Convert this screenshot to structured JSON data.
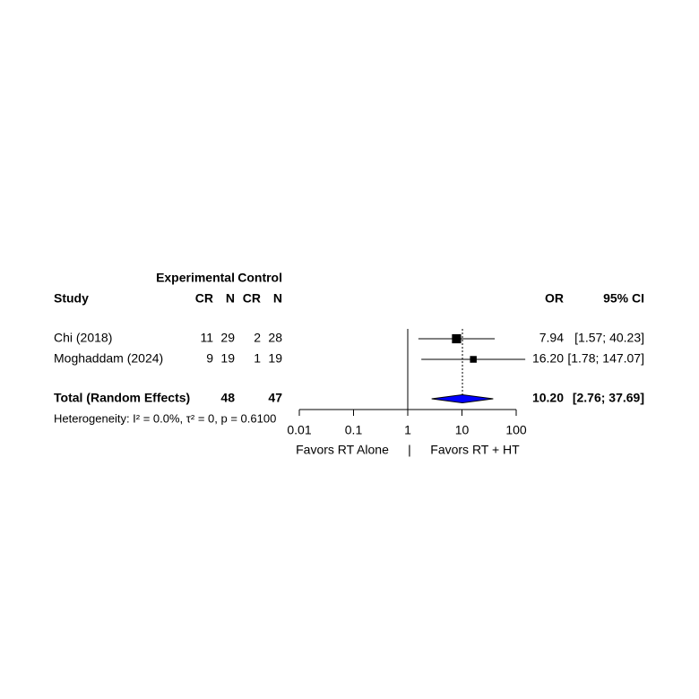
{
  "chart_data": {
    "type": "forest",
    "column_group_labels": [
      "Experimental",
      "Control"
    ],
    "column_headers": [
      "Study",
      "CR",
      "N",
      "CR",
      "N",
      "OR",
      "95% CI"
    ],
    "studies": [
      "Chi (2018)",
      "Moghaddam (2024)"
    ],
    "exp_events": [
      11,
      9
    ],
    "exp_total": [
      29,
      19
    ],
    "ctrl_events": [
      2,
      1
    ],
    "ctrl_total": [
      28,
      19
    ],
    "values": [
      7.94,
      16.2
    ],
    "value_labels": [
      "7.94",
      "16.20"
    ],
    "ci_lower": [
      1.57,
      1.78
    ],
    "ci_upper": [
      40.23,
      147.07
    ],
    "ci_labels": [
      "[1.57;  40.23]",
      "[1.78; 147.07]"
    ],
    "color": "#000000",
    "total": {
      "label": "Total (Random Effects)",
      "exp_total": 48,
      "ctrl_total": 47,
      "value": 10.2,
      "value_label": "10.20",
      "ci_lower": 2.76,
      "ci_upper": 37.69,
      "ci_label": "[2.76;  37.69]",
      "color": "#0000ff"
    },
    "heterogeneity": "Heterogeneity: I² = 0.0%, τ² = 0, p = 0.6100",
    "log_scale": true,
    "xlim": [
      0.01,
      100
    ],
    "xticks": [
      0.01,
      0.1,
      1,
      10,
      100
    ],
    "reference_line": 1,
    "xlabel_left": "Favors RT Alone",
    "xlabel_separator": "|",
    "xlabel_right": "Favors RT + HT"
  }
}
